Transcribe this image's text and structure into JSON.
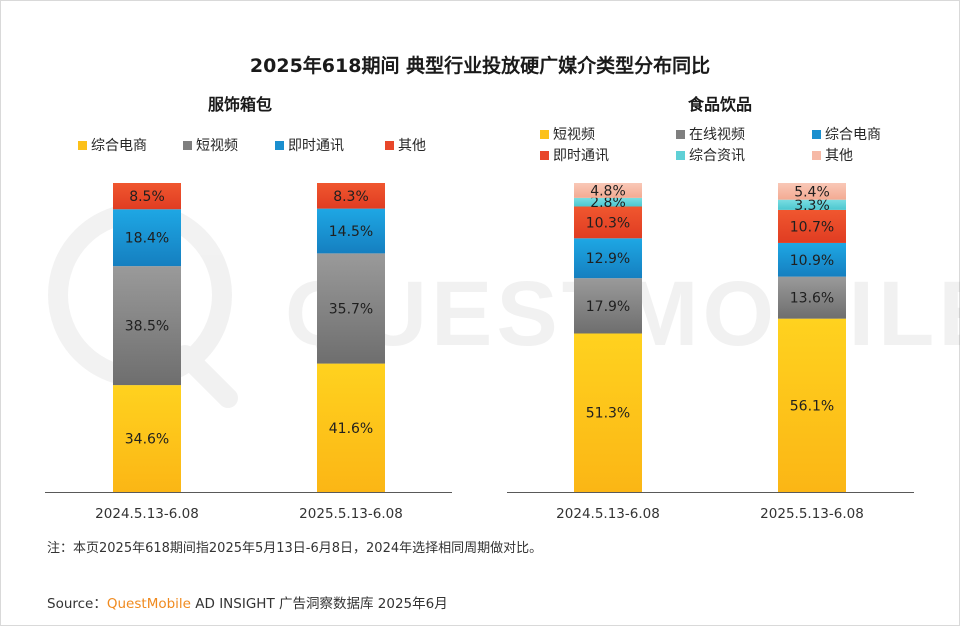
{
  "title": "2025年618期间 典型行业投放硬广媒介类型分布同比",
  "watermark": "QUESTMOBILE",
  "note": "注：本页2025年618期间指2025年5月13日-6月8日，2024年选择相同周期做对比。",
  "source": {
    "label": "Source：",
    "brand": "QuestMobile",
    "rest": " AD INSIGHT 广告洞察数据库 2025年6月"
  },
  "colors": {
    "综合电商": "#1a8fcf",
    "短视频": "#7f7f7f",
    "在线视频": "#7f7f7f",
    "即时通讯": "#e8472a",
    "综合资讯": "#5fd0d6",
    "其他": "#f6b9a6",
    "accent_bottom": "#fcc119"
  },
  "chart_data": [
    {
      "type": "bar",
      "stacked": true,
      "percent": true,
      "title": "服饰箱包",
      "categories": [
        "2024.5.13-6.08",
        "2025.5.13-6.08"
      ],
      "legend": [
        "综合电商",
        "短视频",
        "即时通讯",
        "其他"
      ],
      "legend_colors": [
        "#fcc119",
        "#7f7f7f",
        "#1a8fcf",
        "#e8472a"
      ],
      "series": [
        {
          "name": "综合电商",
          "color": "#fcc119",
          "values": [
            34.6,
            41.6
          ],
          "labels": [
            "34.6%",
            "41.6%"
          ]
        },
        {
          "name": "短视频",
          "color": "#7f7f7f",
          "values": [
            38.5,
            35.7
          ],
          "labels": [
            "38.5%",
            "35.7%"
          ]
        },
        {
          "name": "即时通讯",
          "color": "#1a8fcf",
          "values": [
            18.4,
            14.5
          ],
          "labels": [
            "18.4%",
            "14.5%"
          ]
        },
        {
          "name": "其他",
          "color": "#e8472a",
          "values": [
            8.5,
            8.3
          ],
          "labels": [
            "8.5%",
            "8.3%"
          ]
        }
      ]
    },
    {
      "type": "bar",
      "stacked": true,
      "percent": true,
      "title": "食品饮品",
      "categories": [
        "2024.5.13-6.08",
        "2025.5.13-6.08"
      ],
      "legend": [
        "短视频",
        "在线视频",
        "综合电商",
        "即时通讯",
        "综合资讯",
        "其他"
      ],
      "legend_colors": [
        "#fcc119",
        "#7f7f7f",
        "#1a8fcf",
        "#e8472a",
        "#5fd0d6",
        "#f6b9a6"
      ],
      "series": [
        {
          "name": "短视频",
          "color": "#fcc119",
          "values": [
            51.3,
            56.1
          ],
          "labels": [
            "51.3%",
            "56.1%"
          ]
        },
        {
          "name": "在线视频",
          "color": "#7f7f7f",
          "values": [
            17.9,
            13.6
          ],
          "labels": [
            "17.9%",
            "13.6%"
          ]
        },
        {
          "name": "综合电商",
          "color": "#1a8fcf",
          "values": [
            12.9,
            10.9
          ],
          "labels": [
            "12.9%",
            "10.9%"
          ]
        },
        {
          "name": "即时通讯",
          "color": "#e8472a",
          "values": [
            10.3,
            10.7
          ],
          "labels": [
            "10.3%",
            "10.7%"
          ]
        },
        {
          "name": "综合资讯",
          "color": "#5fd0d6",
          "values": [
            2.8,
            3.3
          ],
          "labels": [
            "2.8%",
            "3.3%"
          ]
        },
        {
          "name": "其他",
          "color": "#f6b9a6",
          "values": [
            4.8,
            5.4
          ],
          "labels": [
            "4.8%",
            "5.4%"
          ]
        }
      ]
    }
  ]
}
